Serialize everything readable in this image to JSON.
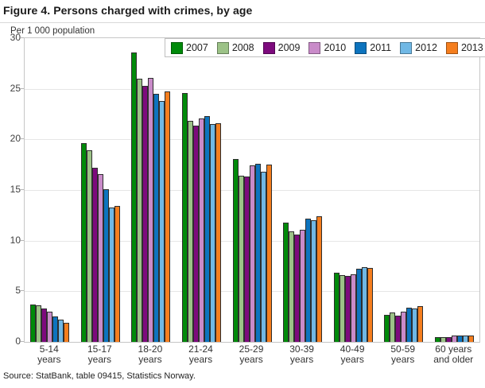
{
  "title": "Figure 4. Persons charged with crimes, by age",
  "y_axis_title": "Per 1 000 population",
  "source": "Source: StatBank, table 09415, Statistics Norway.",
  "chart_data": {
    "type": "bar",
    "title": "Figure 4. Persons charged with crimes, by age",
    "xlabel": "",
    "ylabel": "Per 1 000 population",
    "ylim": [
      0,
      30
    ],
    "yticks": [
      0,
      5,
      10,
      15,
      20,
      25,
      30
    ],
    "grid": true,
    "legend_position": "top",
    "categories": [
      "5-14 years",
      "15-17 years",
      "18-20 years",
      "21-24 years",
      "25-29 years",
      "30-39 years",
      "40-49 years",
      "50-59 years",
      "60 years and older"
    ],
    "category_label_lines": [
      [
        "5-14",
        "years"
      ],
      [
        "15-17",
        "years"
      ],
      [
        "18-20",
        "years"
      ],
      [
        "21-24",
        "years"
      ],
      [
        "25-29",
        "years"
      ],
      [
        "30-39",
        "years"
      ],
      [
        "40-49",
        "years"
      ],
      [
        "50-59",
        "years"
      ],
      [
        "60 years",
        "and older"
      ]
    ],
    "series": [
      {
        "name": "2007",
        "color": "#008A0A",
        "values": [
          3.7,
          19.6,
          28.6,
          24.6,
          18.1,
          11.8,
          6.8,
          2.7,
          0.5
        ]
      },
      {
        "name": "2008",
        "color": "#9CC287",
        "values": [
          3.6,
          18.9,
          26.0,
          21.8,
          16.4,
          10.9,
          6.6,
          2.9,
          0.5
        ]
      },
      {
        "name": "2009",
        "color": "#7D0A7D",
        "values": [
          3.3,
          17.2,
          25.3,
          21.4,
          16.3,
          10.6,
          6.5,
          2.6,
          0.5
        ]
      },
      {
        "name": "2010",
        "color": "#C98BC9",
        "values": [
          3.0,
          16.6,
          26.1,
          22.1,
          17.4,
          11.1,
          6.7,
          3.0,
          0.6
        ]
      },
      {
        "name": "2011",
        "color": "#0D74BE",
        "values": [
          2.5,
          15.1,
          24.5,
          22.3,
          17.6,
          12.2,
          7.2,
          3.4,
          0.6
        ]
      },
      {
        "name": "2012",
        "color": "#70B8E5",
        "values": [
          2.2,
          13.3,
          23.8,
          21.5,
          16.8,
          12.0,
          7.4,
          3.3,
          0.6
        ]
      },
      {
        "name": "2013",
        "color": "#F57E1E",
        "values": [
          1.9,
          13.4,
          24.7,
          21.6,
          17.5,
          12.4,
          7.3,
          3.5,
          0.6
        ]
      }
    ]
  }
}
